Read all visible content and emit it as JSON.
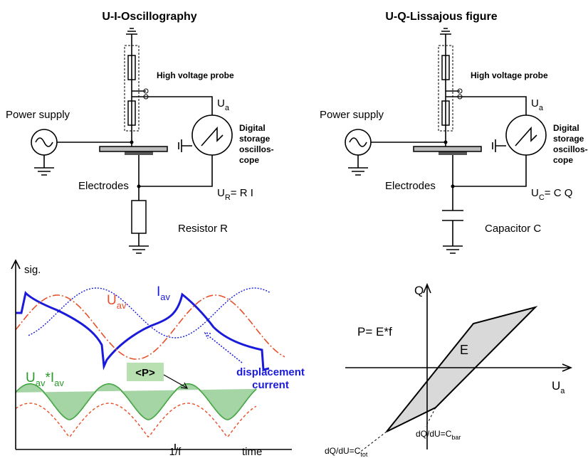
{
  "left": {
    "title": "U-I-Oscillography",
    "probe": "High voltage probe",
    "supply": "Power supply",
    "ua": {
      "base": "U",
      "sub": "a"
    },
    "scope": [
      "Digital",
      "storage",
      "oscillos-",
      "cope"
    ],
    "electrodes": "Electrodes",
    "meas": {
      "base": "U",
      "sub": "R",
      "rest": "= R I"
    },
    "element": "Resistor R"
  },
  "right": {
    "title": "U-Q-Lissajous figure",
    "probe": "High voltage probe",
    "supply": "Power supply",
    "ua": {
      "base": "U",
      "sub": "a"
    },
    "scope": [
      "Digital",
      "storage",
      "oscillos-",
      "cope"
    ],
    "electrodes": "Electrodes",
    "meas": {
      "base": "U",
      "sub": "C",
      "rest": "= C Q"
    },
    "element": "Capacitor C"
  },
  "plot": {
    "ylabel": "sig.",
    "uav": {
      "base": "U",
      "sub": "av"
    },
    "iav": {
      "base": "I",
      "sub": "av"
    },
    "product": {
      "b1": "U",
      "s1": "av",
      "b2": "*I",
      "s2": "av"
    },
    "power": "<P>",
    "displacement": [
      "displacement",
      "current"
    ],
    "xtick": "1/f",
    "xlabel": "time"
  },
  "lissajous": {
    "ylabel": "Q",
    "xlabel": {
      "base": "U",
      "sub": "a"
    },
    "power": "P= E*f",
    "energy": "E",
    "ctot": {
      "base": "dQ/dU=C",
      "sub": "tot"
    },
    "cbar": {
      "base": "dQ/dU=C",
      "sub": "bar"
    }
  }
}
